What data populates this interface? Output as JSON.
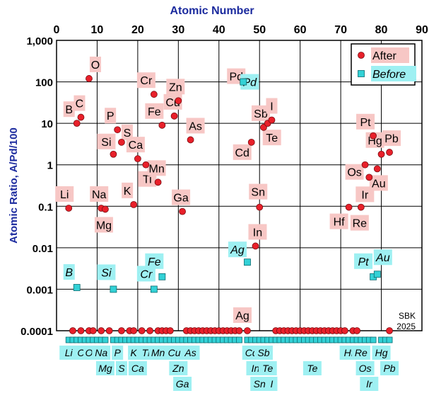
{
  "chart_data": {
    "type": "scatter",
    "title": "",
    "x_axis": {
      "label": "Atomic Number",
      "position": "top",
      "range": [
        0,
        90
      ],
      "ticks": [
        0,
        10,
        20,
        30,
        40,
        50,
        60,
        70,
        80,
        90
      ],
      "tick_labels": [
        "0",
        "10",
        "20",
        "30",
        "40",
        "50",
        "60",
        "70",
        "80",
        "90"
      ]
    },
    "y_axis": {
      "label": "Atomic Ratio,  A/Pd/100",
      "scale": "log",
      "range": [
        0.0001,
        1000
      ],
      "ticks": [
        0.0001,
        0.001,
        0.01,
        0.1,
        1,
        10,
        100,
        1000
      ],
      "tick_labels": [
        "0.0001",
        "0.001",
        "0.01",
        "0.1",
        "1",
        "10",
        "100",
        "1,000"
      ]
    },
    "grid": true,
    "legend": {
      "placement": "top-right",
      "entries": [
        {
          "label": "After",
          "marker": "circle",
          "color": "#e8202a"
        },
        {
          "label": "Before",
          "marker": "square",
          "color": "#33d1d6"
        }
      ]
    },
    "annotation": "SBK\n2025",
    "series": [
      {
        "name": "After",
        "marker": "circle",
        "color": "#e8202a",
        "points": [
          {
            "x": 3,
            "y": 0.09,
            "label": "Li"
          },
          {
            "x": 5,
            "y": 10,
            "label": "B"
          },
          {
            "x": 6,
            "y": 14,
            "label": "C"
          },
          {
            "x": 8,
            "y": 120,
            "label": "O"
          },
          {
            "x": 11,
            "y": 0.09,
            "label": "Na"
          },
          {
            "x": 12,
            "y": 0.085,
            "label": "Mg"
          },
          {
            "x": 14,
            "y": 1.8,
            "label": "Si"
          },
          {
            "x": 15,
            "y": 7,
            "label": "P"
          },
          {
            "x": 16,
            "y": 3.5,
            "label": "S"
          },
          {
            "x": 19,
            "y": 0.11,
            "label": "K"
          },
          {
            "x": 20,
            "y": 1.4,
            "label": "Ca"
          },
          {
            "x": 22,
            "y": 1.0,
            "label": "Ti"
          },
          {
            "x": 24,
            "y": 50,
            "label": "Cr"
          },
          {
            "x": 25,
            "y": 0.38,
            "label": "Mn"
          },
          {
            "x": 26,
            "y": 9,
            "label": "Fe"
          },
          {
            "x": 29,
            "y": 15,
            "label": "Cu"
          },
          {
            "x": 30,
            "y": 35,
            "label": "Zn"
          },
          {
            "x": 31,
            "y": 0.075,
            "label": "Ga"
          },
          {
            "x": 33,
            "y": 4,
            "label": "As"
          },
          {
            "x": 46,
            "y": 100,
            "label": "Pd"
          },
          {
            "x": 47,
            "y": 0.0001,
            "label": "Ag"
          },
          {
            "x": 48,
            "y": 3.5,
            "label": "Cd"
          },
          {
            "x": 49,
            "y": 0.011,
            "label": "In"
          },
          {
            "x": 50,
            "y": 0.095,
            "label": "Sn"
          },
          {
            "x": 51,
            "y": 8,
            "label": "Sb"
          },
          {
            "x": 52,
            "y": 10,
            "label": "Te"
          },
          {
            "x": 53,
            "y": 12,
            "label": "I"
          },
          {
            "x": 72,
            "y": 0.095,
            "label": "Hf"
          },
          {
            "x": 75,
            "y": 0.095,
            "label": "Re"
          },
          {
            "x": 76,
            "y": 1.0,
            "label": "Os"
          },
          {
            "x": 77,
            "y": 0.5,
            "label": "Ir"
          },
          {
            "x": 78,
            "y": 5,
            "label": "Pt"
          },
          {
            "x": 79,
            "y": 0.8,
            "label": "Au"
          },
          {
            "x": 80,
            "y": 1.8,
            "label": "Hg"
          },
          {
            "x": 82,
            "y": 2.0,
            "label": "Pb"
          }
        ]
      },
      {
        "name": "Before",
        "marker": "square",
        "color": "#33d1d6",
        "points": [
          {
            "x": 5,
            "y": 0.0011,
            "label": "B"
          },
          {
            "x": 14,
            "y": 0.001,
            "label": "Si"
          },
          {
            "x": 24,
            "y": 0.001,
            "label": "Cr"
          },
          {
            "x": 26,
            "y": 0.002,
            "label": "Fe"
          },
          {
            "x": 47,
            "y": 0.0045,
            "label": "Ag"
          },
          {
            "x": 46,
            "y": 100,
            "label": "Pd"
          },
          {
            "x": 78,
            "y": 0.002,
            "label": "Pt"
          },
          {
            "x": 79,
            "y": 0.0023,
            "label": "Au"
          }
        ]
      }
    ],
    "baseline": {
      "after_circles_at_0_0001_x": [
        4,
        6,
        8,
        9,
        11,
        13,
        16,
        18,
        19,
        21,
        23,
        25,
        26,
        27,
        28,
        32,
        33,
        34,
        35,
        36,
        37,
        38,
        39,
        40,
        41,
        42,
        43,
        44,
        45,
        54,
        55,
        56,
        57,
        58,
        59,
        60,
        61,
        62,
        63,
        64,
        65,
        66,
        67,
        68,
        69,
        70,
        71,
        73,
        74,
        82
      ],
      "before_squares_row_x": [
        3,
        4,
        5,
        6,
        7,
        8,
        9,
        10,
        11,
        12,
        14,
        15,
        16,
        17,
        18,
        19,
        20,
        21,
        22,
        23,
        24,
        25,
        26,
        27,
        28,
        29,
        30,
        31,
        32,
        33,
        34,
        35,
        36,
        37,
        38,
        39,
        40,
        41,
        42,
        43,
        44,
        45,
        47,
        48,
        49,
        50,
        51,
        52,
        53,
        54,
        55,
        56,
        57,
        58,
        59,
        60,
        61,
        62,
        63,
        64,
        65,
        66,
        67,
        68,
        69,
        70,
        71,
        72,
        73,
        74,
        75,
        76,
        77,
        78,
        80,
        81,
        82
      ],
      "bottom_labels": [
        {
          "x": 3,
          "row": 1,
          "label": "Li"
        },
        {
          "x": 6,
          "row": 1,
          "label": "C"
        },
        {
          "x": 8,
          "row": 1,
          "label": "O"
        },
        {
          "x": 11,
          "row": 1,
          "label": "Na"
        },
        {
          "x": 12,
          "row": 2,
          "label": "Mg"
        },
        {
          "x": 15,
          "row": 1,
          "label": "P"
        },
        {
          "x": 16,
          "row": 2,
          "label": "S"
        },
        {
          "x": 19,
          "row": 1,
          "label": "K"
        },
        {
          "x": 20,
          "row": 2,
          "label": "Ca"
        },
        {
          "x": 22,
          "row": 1,
          "label": "Ti"
        },
        {
          "x": 25,
          "row": 1,
          "label": "Mn"
        },
        {
          "x": 29,
          "row": 1,
          "label": "Cu"
        },
        {
          "x": 30,
          "row": 2,
          "label": "Zn"
        },
        {
          "x": 31,
          "row": 3,
          "label": "Ga"
        },
        {
          "x": 33,
          "row": 1,
          "label": "As"
        },
        {
          "x": 48,
          "row": 1,
          "label": "Cd"
        },
        {
          "x": 49,
          "row": 2,
          "label": "In"
        },
        {
          "x": 50,
          "row": 3,
          "label": "Sn"
        },
        {
          "x": 51,
          "row": 1,
          "label": "Sb"
        },
        {
          "x": 52,
          "row": 2,
          "label": "Te"
        },
        {
          "x": 53,
          "row": 3,
          "label": "I"
        },
        {
          "x": 63,
          "row": 2,
          "label": "Te"
        },
        {
          "x": 72,
          "row": 1,
          "label": "Hf"
        },
        {
          "x": 75,
          "row": 1,
          "label": "Re"
        },
        {
          "x": 76,
          "row": 2,
          "label": "Os"
        },
        {
          "x": 77,
          "row": 3,
          "label": "Ir"
        },
        {
          "x": 80,
          "row": 1,
          "label": "Hg"
        },
        {
          "x": 82,
          "row": 2,
          "label": "Pb"
        }
      ]
    },
    "colors": {
      "label_box": "#f7c7c5",
      "label_box_cyan": "#9ef0f2",
      "axis_title": "#1b2a9e",
      "grid": "#000000"
    }
  }
}
